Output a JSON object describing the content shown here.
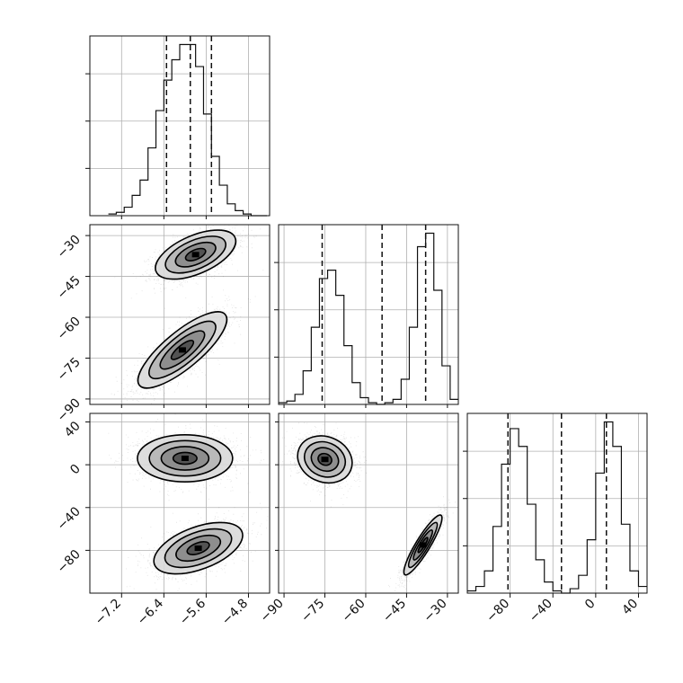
{
  "chart_data": {
    "type": "corner",
    "grid": true,
    "params": [
      {
        "index": 0,
        "range": [
          -7.8,
          -4.4
        ],
        "ticks": [
          -7.2,
          -6.4,
          -5.6,
          -4.8
        ],
        "tick_labels": [
          "−7.2",
          "−6.4",
          "−5.6",
          "−4.8"
        ]
      },
      {
        "index": 1,
        "range": [
          -92,
          -26
        ],
        "ticks": [
          -90,
          -75,
          -60,
          -45,
          -30
        ],
        "tick_labels": [
          "−90",
          "−75",
          "−60",
          "−45",
          "−30"
        ]
      },
      {
        "index": 2,
        "range": [
          -120,
          48
        ],
        "ticks": [
          -80,
          -40,
          0,
          40
        ],
        "tick_labels": [
          "−80",
          "−40",
          "0",
          "40"
        ]
      }
    ],
    "histograms": [
      {
        "param": 0,
        "bins": [
          -7.45,
          -7.3,
          -7.15,
          -7.0,
          -6.85,
          -6.7,
          -6.55,
          -6.4,
          -6.25,
          -6.1,
          -5.95,
          -5.8,
          -5.65,
          -5.5,
          -5.35,
          -5.2,
          -5.05,
          -4.9,
          -4.75,
          -4.6,
          -4.45
        ],
        "counts": [
          1,
          2,
          5,
          12,
          21,
          40,
          62,
          80,
          92,
          101,
          101,
          88,
          60,
          35,
          18,
          7,
          3,
          1,
          0,
          0
        ],
        "quantile_lines": [
          -6.35,
          -5.9,
          -5.5
        ]
      },
      {
        "param": 1,
        "bins": [
          -92,
          -89,
          -86,
          -83,
          -80,
          -77,
          -74,
          -71,
          -68,
          -65,
          -62,
          -59,
          -56,
          -53,
          -50,
          -47,
          -44,
          -41,
          -38,
          -35,
          -32,
          -29,
          -26
        ],
        "counts": [
          1,
          2,
          6,
          20,
          46,
          75,
          80,
          65,
          35,
          13,
          4,
          1,
          0,
          1,
          3,
          15,
          46,
          94,
          102,
          68,
          23,
          3
        ],
        "quantile_lines": [
          -76,
          -54,
          -38
        ]
      },
      {
        "param": 2,
        "bins": [
          -120,
          -112,
          -104,
          -96,
          -88,
          -80,
          -72,
          -64,
          -56,
          -48,
          -40,
          -32,
          -24,
          -16,
          -8,
          0,
          8,
          16,
          24,
          32,
          40,
          48
        ],
        "counts": [
          1,
          3,
          10,
          30,
          58,
          74,
          66,
          40,
          15,
          5,
          1,
          0,
          2,
          8,
          24,
          54,
          77,
          66,
          31,
          10,
          3
        ],
        "quantile_lines": [
          -82,
          -32,
          10
        ]
      }
    ],
    "pairs": [
      {
        "x_param": 0,
        "y_param": 1,
        "clusters": [
          {
            "mean": [
              -5.8,
              -37
            ],
            "sd": [
              0.38,
              4.5
            ],
            "rho": 0.55,
            "n": 2200
          },
          {
            "mean": [
              -6.05,
              -72
            ],
            "sd": [
              0.42,
              7.0
            ],
            "rho": 0.8,
            "n": 2200
          }
        ]
      },
      {
        "x_param": 0,
        "y_param": 2,
        "clusters": [
          {
            "mean": [
              -6.0,
              6
            ],
            "sd": [
              0.45,
              11
            ],
            "rho": 0.0,
            "n": 2200
          },
          {
            "mean": [
              -5.75,
              -78
            ],
            "sd": [
              0.42,
              12
            ],
            "rho": 0.5,
            "n": 2200
          }
        ]
      },
      {
        "x_param": 1,
        "y_param": 2,
        "clusters": [
          {
            "mean": [
              -75,
              5
            ],
            "sd": [
              5.0,
              11
            ],
            "rho": -0.15,
            "n": 2200
          },
          {
            "mean": [
              -39,
              -75
            ],
            "sd": [
              3.5,
              14
            ],
            "rho": 0.9,
            "n": 2200
          }
        ]
      }
    ],
    "contour_sigmas": [
      0.5,
      1.0,
      1.5,
      2.0
    ]
  }
}
